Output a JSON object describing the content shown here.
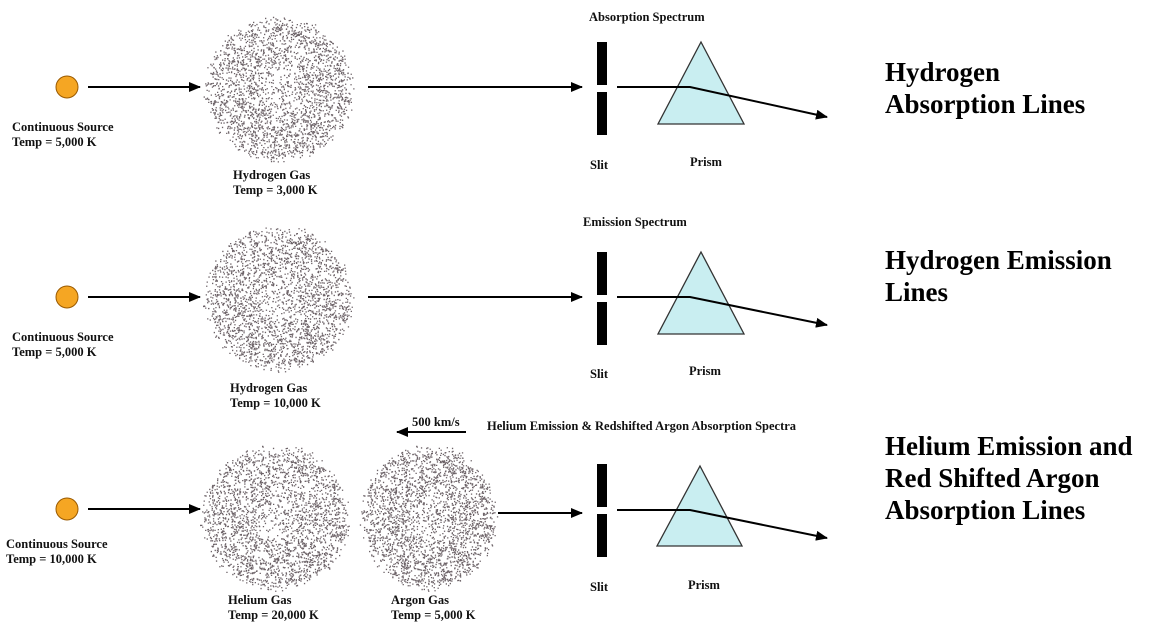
{
  "colors": {
    "source_fill": "#F5A623",
    "source_stroke": "#9a5a00",
    "prism_fill": "#C9EEF1",
    "prism_stroke": "#333333",
    "gas_dots": "#3b2e34",
    "line": "#000000"
  },
  "rows": [
    {
      "source_label_1": "Continuous Source",
      "source_label_2": "Temp = 5,000 K",
      "gas_label_1": "Hydrogen Gas",
      "gas_label_2": "Temp = 3,000 K",
      "spectrum_title": "Absorption Spectrum",
      "slit_label": "Slit",
      "prism_label": "Prism",
      "result_label": "Hydrogen Absorption Lines"
    },
    {
      "source_label_1": "Continuous Source",
      "source_label_2": "Temp = 5,000 K",
      "gas_label_1": "Hydrogen Gas",
      "gas_label_2": "Temp = 10,000 K",
      "spectrum_title": "Emission Spectrum",
      "slit_label": "Slit",
      "prism_label": "Prism",
      "result_label": "Hydrogen Emission Lines"
    },
    {
      "source_label_1": "Continuous Source",
      "source_label_2": "Temp = 10,000 K",
      "gas_label_1": "Helium Gas",
      "gas_label_2": "Temp = 20,000 K",
      "gas2_label_1": "Argon Gas",
      "gas2_label_2": "Temp = 5,000 K",
      "velocity_label": "500 km/s",
      "spectrum_title": "Helium Emission & Redshifted Argon Absorption Spectra",
      "slit_label": "Slit",
      "prism_label": "Prism",
      "result_label": "Helium Emission and Red Shifted Argon Absorption Lines"
    }
  ]
}
